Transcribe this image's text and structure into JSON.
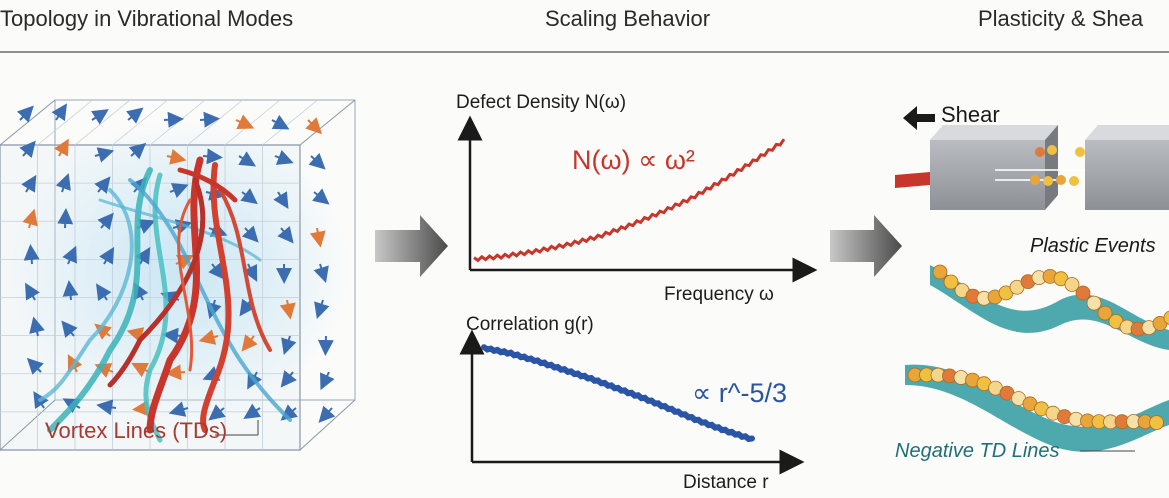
{
  "headers": {
    "left": "Topology in Vibrational Modes",
    "center": "Scaling Behavior",
    "right": "Plasticity & Shea"
  },
  "left_panel": {
    "callout": "Vortex Lines (TDs)"
  },
  "defect_chart": {
    "title": "Defect Density N(ω)",
    "fit_label": "N(ω) ∝ ω²",
    "xlabel": "Frequency ω"
  },
  "correlation_chart": {
    "title": "Correlation g(r)",
    "fit_label": "∝ r^-5/3",
    "xlabel": "Distance r"
  },
  "right_panel": {
    "shear_label": "Shear",
    "plastic_label": "Plastic Events",
    "negative_label": "Negative TD Lines"
  },
  "chart_data": [
    {
      "type": "line",
      "title": "Defect Density N(ω)",
      "xlabel": "Frequency ω",
      "ylabel": "Defect Density N(ω)",
      "annotation": "N(ω) ∝ ω²",
      "series": [
        {
          "name": "N(ω)",
          "color": "#c8362b",
          "x": [
            0,
            0.1,
            0.2,
            0.3,
            0.4,
            0.5,
            0.6,
            0.7,
            0.8,
            0.9,
            1.0
          ],
          "y": [
            0.08,
            0.1,
            0.13,
            0.17,
            0.22,
            0.29,
            0.37,
            0.46,
            0.57,
            0.69,
            0.82
          ]
        }
      ]
    },
    {
      "type": "line",
      "title": "Correlation g(r)",
      "xlabel": "Distance r",
      "ylabel": "Correlation g(r)",
      "annotation": "∝ r^-5/3",
      "series": [
        {
          "name": "g(r)",
          "color": "#2a55a6",
          "x": [
            0,
            0.1,
            0.2,
            0.3,
            0.4,
            0.5,
            0.6,
            0.7,
            0.8,
            0.9,
            1.0
          ],
          "y": [
            1.0,
            0.95,
            0.88,
            0.8,
            0.72,
            0.63,
            0.54,
            0.44,
            0.34,
            0.25,
            0.17
          ]
        }
      ]
    }
  ]
}
